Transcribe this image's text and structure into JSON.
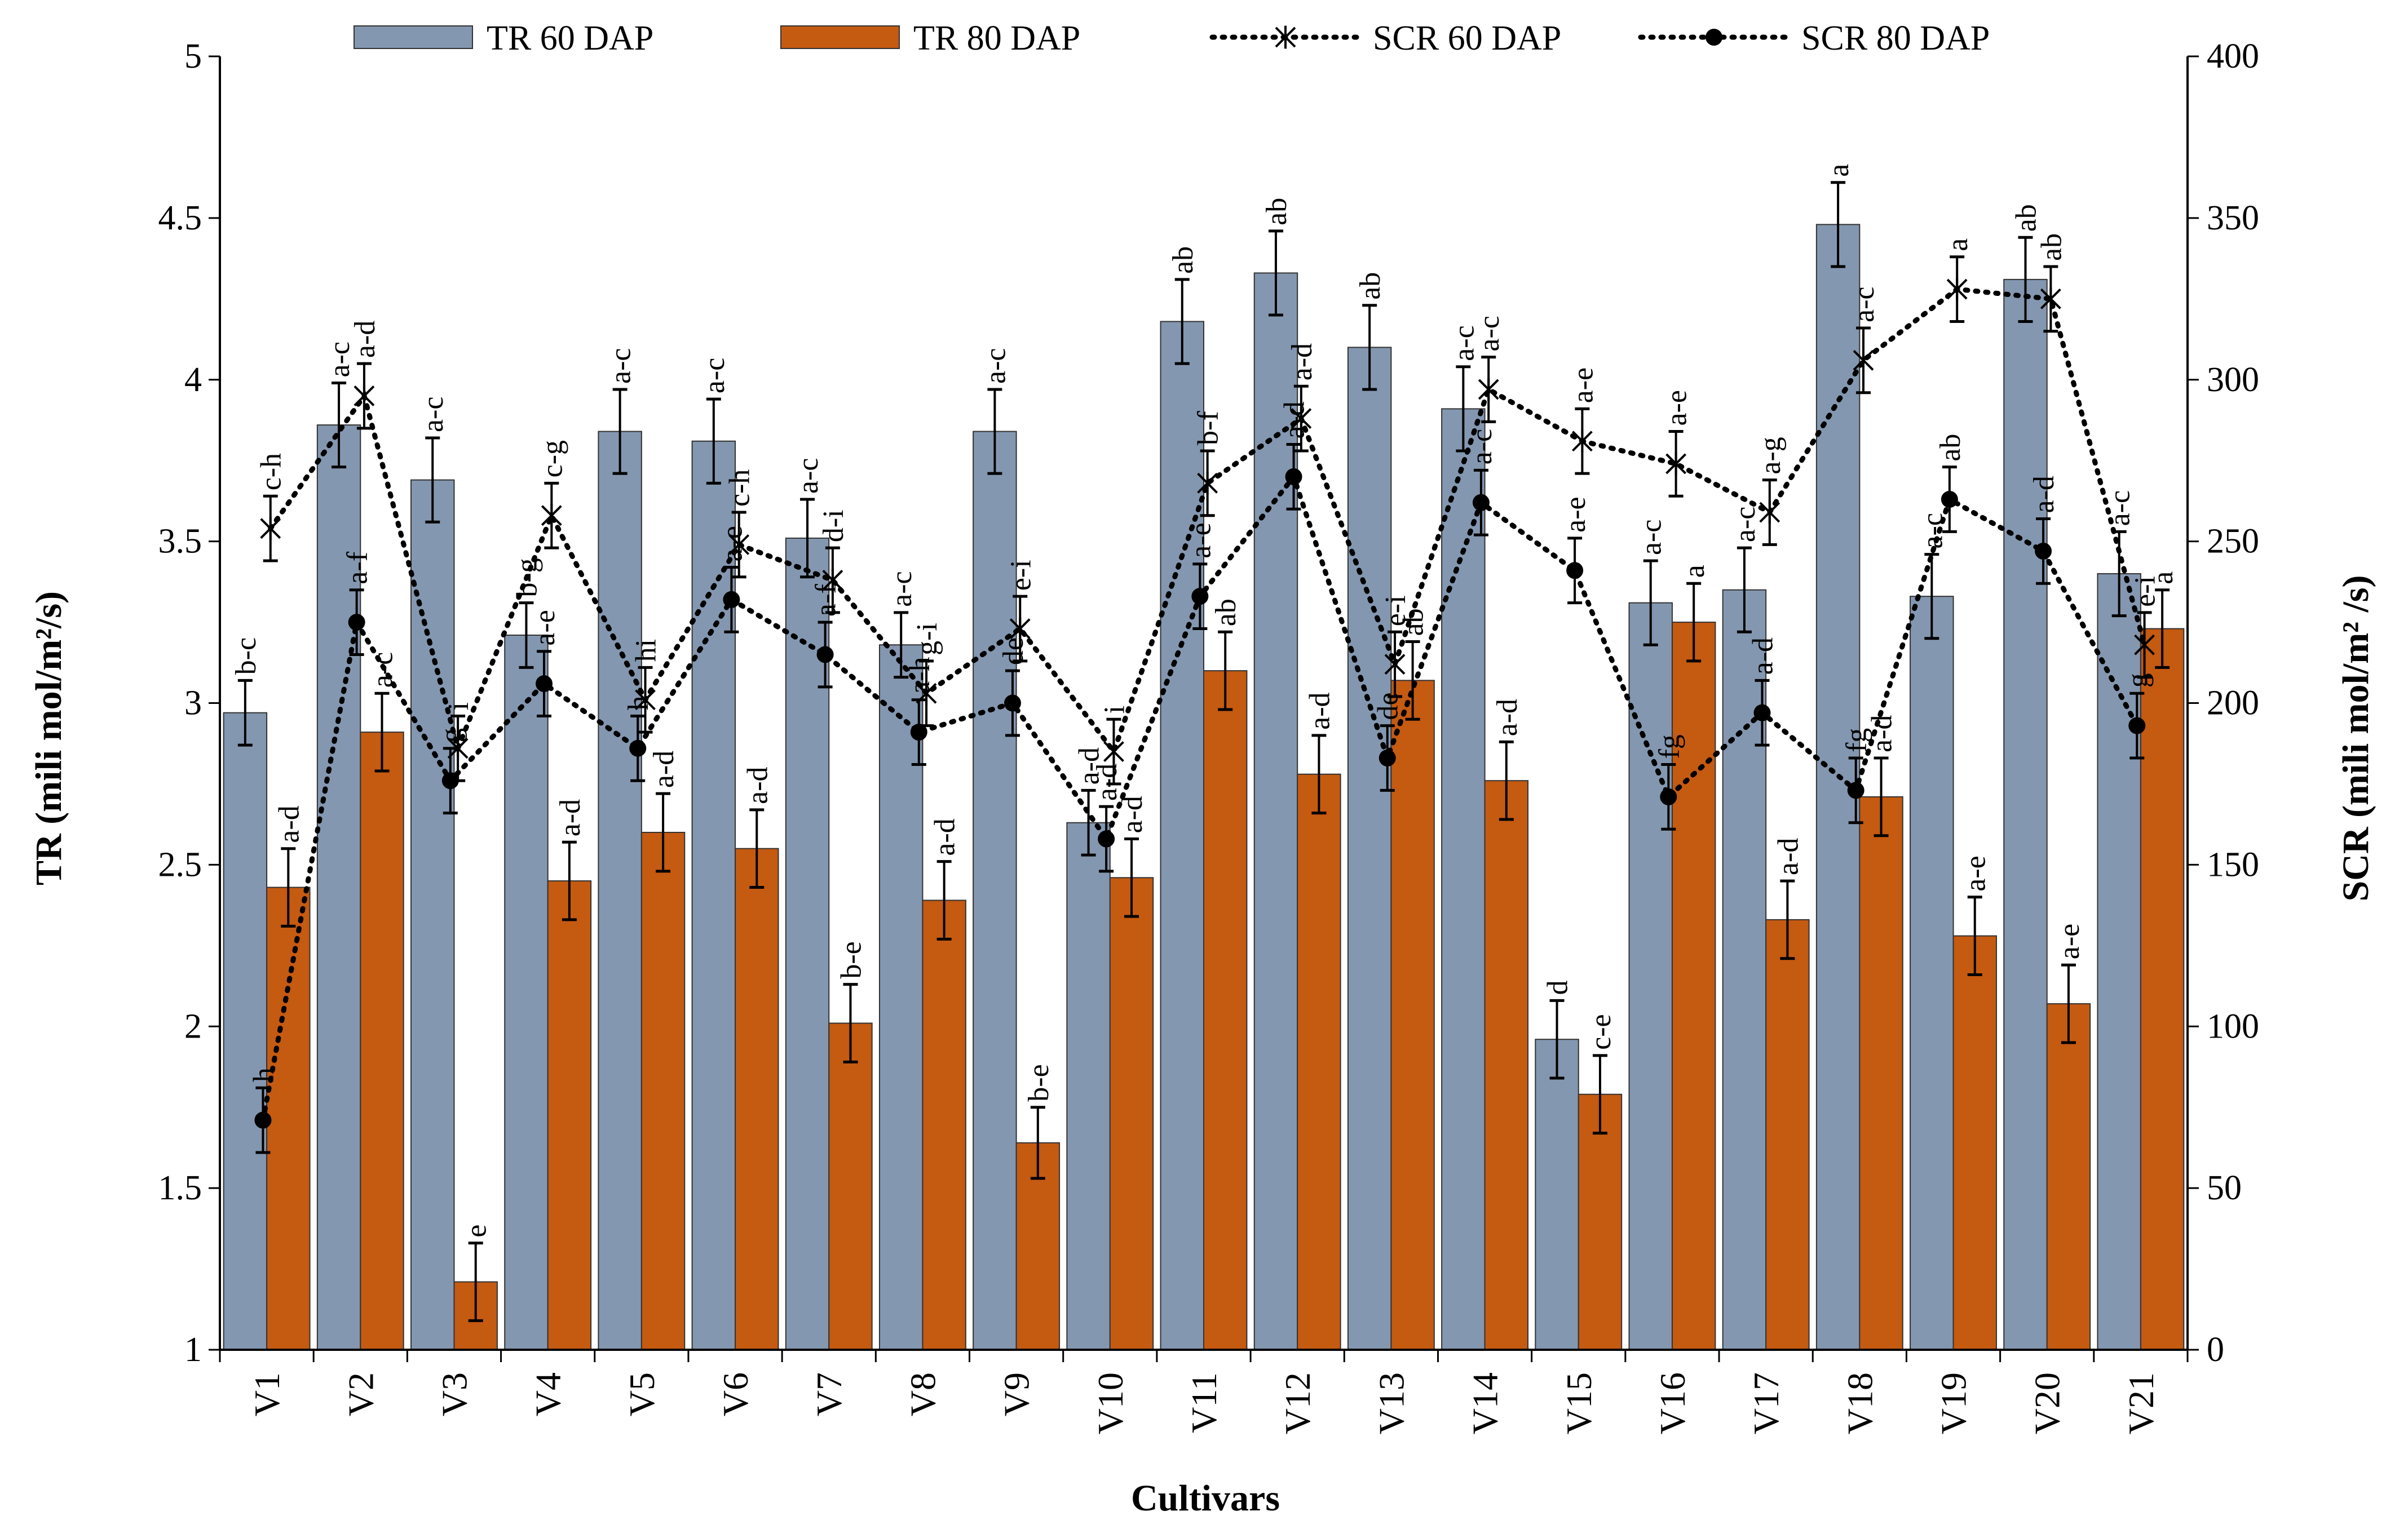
{
  "chart_data": {
    "type": "bar",
    "title": "",
    "xlabel": "Cultivars",
    "ylabel": "TR (mili mol/m²/s)",
    "y2label": "SCR (mili mol/m² /s)",
    "ylim": [
      1,
      5
    ],
    "y2lim": [
      0,
      400
    ],
    "yticks": [
      "1",
      "1.5",
      "2",
      "2.5",
      "3",
      "3.5",
      "4",
      "4.5",
      "5"
    ],
    "y2ticks": [
      "0",
      "50",
      "100",
      "150",
      "200",
      "250",
      "300",
      "350",
      "400"
    ],
    "legend_position": "top",
    "categories": [
      "V1",
      "V2",
      "V3",
      "V4",
      "V5",
      "V6",
      "V7",
      "V8",
      "V9",
      "V10",
      "V11",
      "V12",
      "V13",
      "V14",
      "V15",
      "V16",
      "V17",
      "V18",
      "V19",
      "V20",
      "V21"
    ],
    "series": [
      {
        "name": "TR  60 DAP",
        "kind": "bar",
        "axis": "left",
        "color": "#8497B0",
        "values": [
          2.97,
          3.86,
          3.69,
          3.21,
          3.84,
          3.81,
          3.51,
          3.18,
          3.84,
          2.63,
          4.18,
          4.33,
          4.1,
          3.91,
          1.96,
          3.31,
          3.35,
          4.48,
          3.33,
          4.31,
          3.4
        ],
        "errors": [
          0.1,
          0.13,
          0.13,
          0.1,
          0.13,
          0.13,
          0.12,
          0.1,
          0.13,
          0.1,
          0.13,
          0.13,
          0.13,
          0.13,
          0.12,
          0.13,
          0.13,
          0.13,
          0.13,
          0.13,
          0.13
        ],
        "labels": [
          "b-c",
          "a-c",
          "a-c",
          "b-g",
          "a-c",
          "a-c",
          "a-c",
          "a-c",
          "a-c",
          "a-d",
          "ab",
          "ab",
          "ab",
          "a-c",
          "d",
          "a-c",
          "a-c",
          "a",
          "a-c",
          "ab",
          "a-c"
        ]
      },
      {
        "name": "TR  80 DAP",
        "kind": "bar",
        "axis": "left",
        "color": "#C55A11",
        "values": [
          2.43,
          2.91,
          1.21,
          2.45,
          2.6,
          2.55,
          2.01,
          2.39,
          1.64,
          2.46,
          3.1,
          2.78,
          3.07,
          2.76,
          1.79,
          3.25,
          2.33,
          2.71,
          2.28,
          2.07,
          3.23
        ],
        "errors": [
          0.12,
          0.12,
          0.12,
          0.12,
          0.12,
          0.12,
          0.12,
          0.12,
          0.11,
          0.12,
          0.12,
          0.12,
          0.12,
          0.12,
          0.12,
          0.12,
          0.12,
          0.12,
          0.12,
          0.12,
          0.12
        ],
        "labels": [
          "a-d",
          "a-c",
          "e",
          "a-d",
          "a-d",
          "a-d",
          "b-e",
          "a-d",
          "b-e",
          "a-d",
          "ab",
          "a-d",
          "ab",
          "a-d",
          "c-e",
          "a",
          "a-d",
          "a-d",
          "a-e",
          "a-e",
          "a"
        ]
      },
      {
        "name": "SCR  60 DAP",
        "kind": "line",
        "axis": "right",
        "marker": "star",
        "color": "#000000",
        "values": [
          254,
          295,
          186,
          258,
          201,
          249,
          238,
          203,
          223,
          185,
          268,
          288,
          212,
          297,
          281,
          274,
          259,
          306,
          328,
          325,
          218
        ],
        "errors": [
          10,
          10,
          10,
          10,
          10,
          10,
          10,
          10,
          10,
          10,
          10,
          10,
          10,
          10,
          10,
          10,
          10,
          10,
          10,
          10,
          10
        ],
        "labels": [
          "c-h",
          "a-d",
          "i",
          "c-g",
          "hi",
          "c-h",
          "d-i",
          "g-i",
          "e-i",
          "i",
          "b-f",
          "a-d",
          "e-i",
          "a-c",
          "a-e",
          "a-e",
          "a-g",
          "a-c",
          "a",
          "ab",
          "e-i"
        ]
      },
      {
        "name": "SCR  80 DAP",
        "kind": "line",
        "axis": "right",
        "marker": "circle",
        "color": "#000000",
        "values": [
          71,
          225,
          176,
          206,
          186,
          232,
          215,
          191,
          200,
          158,
          233,
          270,
          183,
          262,
          241,
          171,
          197,
          173,
          263,
          247,
          193
        ],
        "errors": [
          10,
          10,
          10,
          10,
          10,
          10,
          10,
          10,
          10,
          10,
          10,
          10,
          10,
          10,
          10,
          10,
          10,
          10,
          10,
          10,
          10
        ],
        "labels": [
          "h",
          "a-f",
          "g",
          "a-e",
          "h",
          "a-e",
          "a-f",
          "a-h",
          "de",
          "a-d",
          "a-e",
          "a-d",
          "de",
          "a-c",
          "a-e",
          "fg",
          "a-d",
          "fg",
          "ab",
          "a-d",
          "g"
        ]
      }
    ]
  }
}
